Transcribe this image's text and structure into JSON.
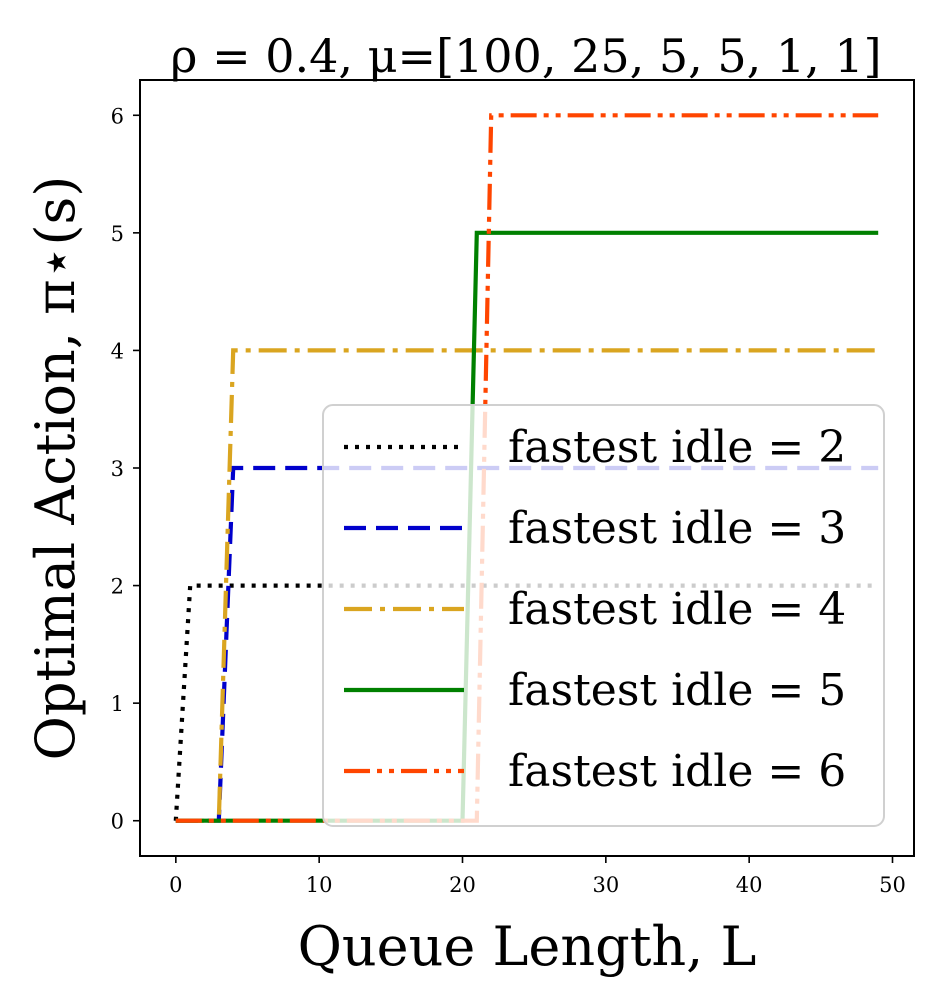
{
  "chart_data": {
    "type": "line",
    "title": "ρ = 0.4, μ=[100, 25, 5, 5, 1, 1]",
    "xlabel": "Queue Length, L",
    "ylabel": "Optimal Action, π⋆(s)",
    "xlim": [
      -2.5,
      51.5
    ],
    "ylim": [
      -0.3,
      6.3
    ],
    "xticks": [
      0,
      10,
      20,
      30,
      40,
      50
    ],
    "yticks": [
      0,
      1,
      2,
      3,
      4,
      5,
      6
    ],
    "legend_position": "lower-right",
    "series": [
      {
        "name": "fastest idle = 2",
        "color": "#000000",
        "style": "dotted",
        "x": [
          0,
          1,
          49
        ],
        "y": [
          0,
          2,
          2
        ]
      },
      {
        "name": "fastest idle = 3",
        "color": "#0000cc",
        "style": "dashed",
        "x": [
          0,
          3,
          4,
          49
        ],
        "y": [
          0,
          0,
          3,
          3
        ]
      },
      {
        "name": "fastest idle = 4",
        "color": "#daa520",
        "style": "dashdot",
        "x": [
          0,
          3,
          4,
          49
        ],
        "y": [
          0,
          0,
          4,
          4
        ]
      },
      {
        "name": "fastest idle = 5",
        "color": "#008000",
        "style": "solid",
        "x": [
          0,
          20,
          21,
          49
        ],
        "y": [
          0,
          0,
          5,
          5
        ]
      },
      {
        "name": "fastest idle = 6",
        "color": "#ff4500",
        "style": "dashdotdot",
        "x": [
          0,
          21,
          22,
          49
        ],
        "y": [
          0,
          0,
          6,
          6
        ]
      }
    ]
  }
}
